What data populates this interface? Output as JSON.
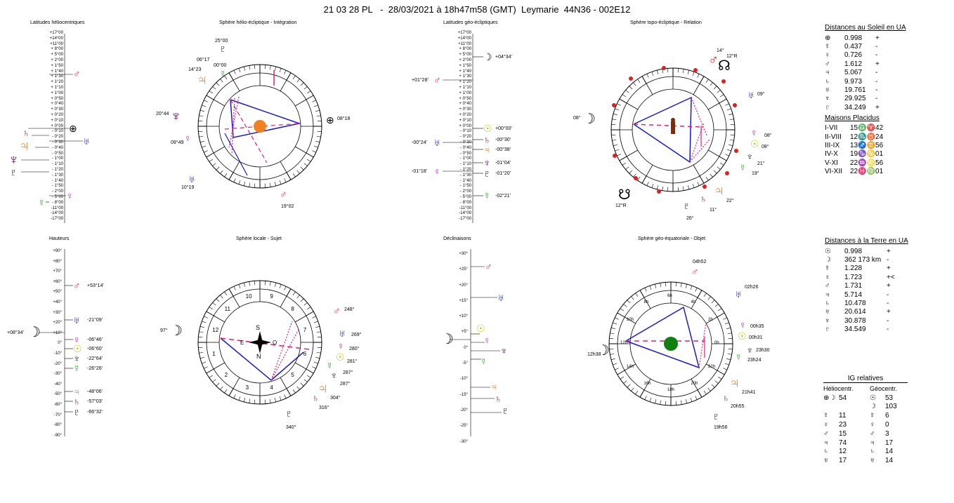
{
  "header": {
    "title": "21 03 28 PL   -  28/03/2021 à 18h47m58 (GMT)  Leymarie  44N36 - 002E12"
  },
  "panels": {
    "lat_helio": "Latitudes héliocentriques",
    "sphere_helio": "Sphère hélio-écliptique - Intégration",
    "lat_geo": "Latitudes géo-écliptiques",
    "sphere_topo": "Sphère topo-écliptique - Relation",
    "hauteurs": "Hauteurs",
    "sphere_locale": "Sphère locale - Sujet",
    "declinaisons": "Déclinaisons",
    "sphere_equat": "Sphère géo-équatoriale - Objet"
  },
  "lat_scale": [
    "+17°00",
    "+14°00",
    "+11°00",
    "+ 8°00",
    "+ 5°00",
    "+ 2°00",
    "+ 1°50",
    "+ 1°40",
    "+ 1°30",
    "+ 1°20",
    "+ 1°10",
    "+ 1°00",
    "+ 0°50",
    "+ 0°40",
    "+ 0°30",
    "+ 0°20",
    "+ 0°10",
    "+ 0°00",
    "- 0°10",
    "- 0°20",
    "- 0°30",
    "- 0°40",
    "- 0°50",
    "- 1°00",
    "- 1°10",
    "- 1°20",
    "- 1°30",
    "- 1°40",
    "- 1°50",
    "- 2°00",
    "- 5°00",
    "- 8°00",
    "-11°00",
    "-14°00",
    "-17°00"
  ],
  "haut_scale": [
    "+90°",
    "+80°",
    "+70°",
    "+60°",
    "+50°",
    "+40°",
    "+30°",
    "+20°",
    "+10°",
    "0°",
    "-10°",
    "-20°",
    "-30°",
    "-40°",
    "-50°",
    "-60°",
    "-70°",
    "-80°",
    "-90°"
  ],
  "decl_scale": [
    "+30°",
    "+25°",
    "+20°",
    "+15°",
    "+10°",
    "+5°",
    "0°",
    "-5°",
    "-10°",
    "-15°",
    "-20°",
    "-25°",
    "-30°"
  ],
  "geo_lat_labels": {
    "moon": "+04°34'",
    "mars": "+01°28'",
    "sun": "+00°00'",
    "saturn": "-00°30'",
    "jupiter": "-00°38'",
    "uranus": "-00°24'",
    "neptune": "-01°04'",
    "venus_l": "-01°18'",
    "pluto": "-01°20'",
    "mercury": "-02°21'"
  },
  "helio_labels": {
    "pluto": "25°00",
    "v1": "06°17",
    "v2": "00°00",
    "j": "14°23",
    "n": "20°44",
    "earth": "08°18",
    "venus": "09°49",
    "uranus": "10°19",
    "mars": "19°02"
  },
  "topo_labels": {
    "mars": "14°",
    "node": "12°R",
    "uranus": "09°",
    "moon": "08°",
    "venus": "08°",
    "sun": "08°",
    "saturn2": "21°",
    "mercury": "19°",
    "jupiter": "22°",
    "saturn": "11°",
    "pluto": "26°",
    "snode": "12°R"
  },
  "haut_labels": {
    "mars": "+53°14'",
    "uranus": "-21°09'",
    "moon": "+08°34'",
    "venus": "-06°46'",
    "sun": "-06°60'",
    "neptune": "-22°64'",
    "mercury": "-26°26'",
    "jupiter": "-48°06'",
    "saturn": "-57°03'",
    "pluto": "-66°32'"
  },
  "loc_labels": {
    "moon": "97°",
    "mars": "248°",
    "uranus": "269°",
    "venus": "280°",
    "sun": "281°",
    "neptune": "287°",
    "mercury": "287°",
    "jupiter": "304°",
    "saturn": "316°",
    "pluto": "340°",
    "s": "S",
    "e": "E",
    "o": "O",
    "n": "N"
  },
  "house_nums": [
    "1",
    "2",
    "3",
    "4",
    "5",
    "6",
    "7",
    "8",
    "9",
    "10",
    "11",
    "12"
  ],
  "equat_hours": [
    "6h",
    "4h",
    "2h",
    "0h",
    "22h",
    "20h",
    "18h",
    "16h",
    "14h",
    "12h",
    "10h",
    "8h"
  ],
  "equat_labels": {
    "mars": "04h52",
    "uranus": "02h26",
    "venus": "00h35",
    "sun": "00h31",
    "neptune": "23h30",
    "mercury": "23h24",
    "jupiter": "21h41",
    "saturn": "20h55",
    "pluto": "19h56",
    "moon": "12h38"
  },
  "dist_sun": {
    "title": "Distances au Soleil en UA",
    "rows": [
      [
        "⊕",
        "0.998",
        "+"
      ],
      [
        "☿",
        "0.437",
        "-"
      ],
      [
        "♀",
        "0.726",
        "-"
      ],
      [
        "♂",
        "1.612",
        "+"
      ],
      [
        "♃",
        "5.067",
        "-"
      ],
      [
        "♄",
        "9.973",
        "-"
      ],
      [
        "♅",
        "19.761",
        "-"
      ],
      [
        "♆",
        "29.925",
        "-"
      ],
      [
        "♇",
        "34.249",
        "+"
      ]
    ]
  },
  "houses": {
    "title": "Maisons Placidus",
    "rows": [
      [
        "I-VII",
        "15♎♈42"
      ],
      [
        "II-VIII",
        "12♏♉24"
      ],
      [
        "III-IX",
        "13♐♊56"
      ],
      [
        "IV-X",
        "19♑♋01"
      ],
      [
        "V-XI",
        "22♒♌56"
      ],
      [
        "VI-XII",
        "22♓♍01"
      ]
    ]
  },
  "dist_earth": {
    "title": "Distances à la Terre en UA",
    "rows": [
      [
        "☉",
        "0.998",
        "+"
      ],
      [
        "☽",
        "362 173 km",
        "-"
      ],
      [
        "☿",
        "1.228",
        "+"
      ],
      [
        "♀",
        "1.723",
        "+<"
      ],
      [
        "♂",
        "1.731",
        "+"
      ],
      [
        "♃",
        "5.714",
        "-"
      ],
      [
        "♄",
        "10.478",
        "-"
      ],
      [
        "♅",
        "20.614",
        "+"
      ],
      [
        "♆",
        "30.878",
        "-"
      ],
      [
        "♇",
        "34.549",
        "-"
      ]
    ]
  },
  "ig": {
    "title": "IG relatives",
    "h1": "Héliocentr.",
    "h2": "Géocentr.",
    "rows": [
      [
        "⊕☽",
        "54",
        "☉",
        "53"
      ],
      [
        "",
        "",
        "☽",
        "103"
      ],
      [
        "☿",
        "11",
        "☿",
        "6"
      ],
      [
        "♀",
        "23",
        "♀",
        "0"
      ],
      [
        "♂",
        "15",
        "♂",
        "3"
      ],
      [
        "♃",
        "74",
        "♃",
        "17"
      ],
      [
        "♄",
        "12",
        "♄",
        "14"
      ],
      [
        "♅",
        "17",
        "♅",
        "14"
      ]
    ]
  },
  "colors": {
    "mars": "#e0202a",
    "venus": "#c020c0",
    "mercury": "#30b030",
    "jupiter": "#f07818",
    "saturn": "#802040",
    "uranus": "#2020c0",
    "neptune": "#601060",
    "pluto": "#000000",
    "sun": "#e0e000",
    "moon": "#000000",
    "line": "#1818d0",
    "dash": "#e0207a"
  }
}
